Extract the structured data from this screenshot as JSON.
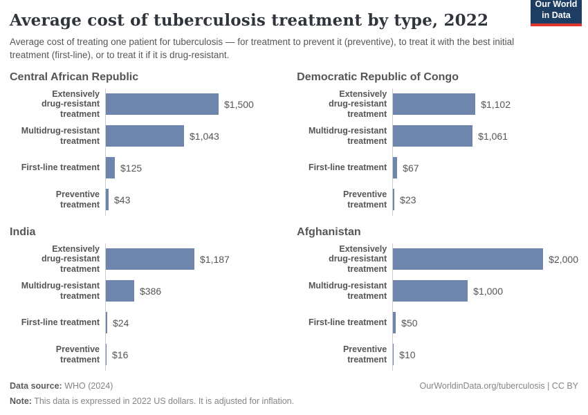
{
  "header": {
    "title": "Average cost of tuberculosis treatment by type, 2022",
    "subtitle": "Average cost of treating one patient for tuberculosis — for treatment to prevent it (preventive), to treat it with the best initial treatment (first-line), or to treat it if it is drug-resistant.",
    "logo_line1": "Our World",
    "logo_line2": "in Data"
  },
  "chart_data": {
    "type": "bar",
    "orientation": "horizontal",
    "unit": "2022 US dollars",
    "xlim": [
      0,
      2000
    ],
    "grid": false,
    "legend": "none",
    "bar_color": "#6e86ac",
    "categories": [
      "Extensively drug-resistant treatment",
      "Multidrug-resistant treatment",
      "First-line treatment",
      "Preventive treatment"
    ],
    "category_label_lines": [
      "Extensively\ndrug-resistant treatment",
      "Multidrug-resistant\ntreatment",
      "First-line treatment",
      "Preventive\ntreatment"
    ],
    "panels": [
      {
        "title": "Central African Republic",
        "values": [
          1500,
          1043,
          125,
          43
        ],
        "value_labels": [
          "$1,500",
          "$1,043",
          "$125",
          "$43"
        ]
      },
      {
        "title": "Democratic Republic of Congo",
        "values": [
          1102,
          1061,
          67,
          23
        ],
        "value_labels": [
          "$1,102",
          "$1,061",
          "$67",
          "$23"
        ]
      },
      {
        "title": "India",
        "values": [
          1187,
          386,
          24,
          16
        ],
        "value_labels": [
          "$1,187",
          "$386",
          "$24",
          "$16"
        ]
      },
      {
        "title": "Afghanistan",
        "values": [
          2000,
          1000,
          50,
          10
        ],
        "value_labels": [
          "$2,000",
          "$1,000",
          "$50",
          "$10"
        ]
      }
    ]
  },
  "footer": {
    "source_label": "Data source:",
    "source_value": "WHO (2024)",
    "note_label": "Note:",
    "note_value": "This data is expressed in 2022 US dollars. It is adjusted for inflation.",
    "attribution": "OurWorldinData.org/tuberculosis | CC BY"
  },
  "colors": {
    "bar": "#6e86ac",
    "logo_navy": "#1d3d63",
    "logo_red": "#e0342c",
    "title_text": "#30343c",
    "body_text": "#555555",
    "footer_text": "#858585",
    "axis": "#cccccc"
  }
}
